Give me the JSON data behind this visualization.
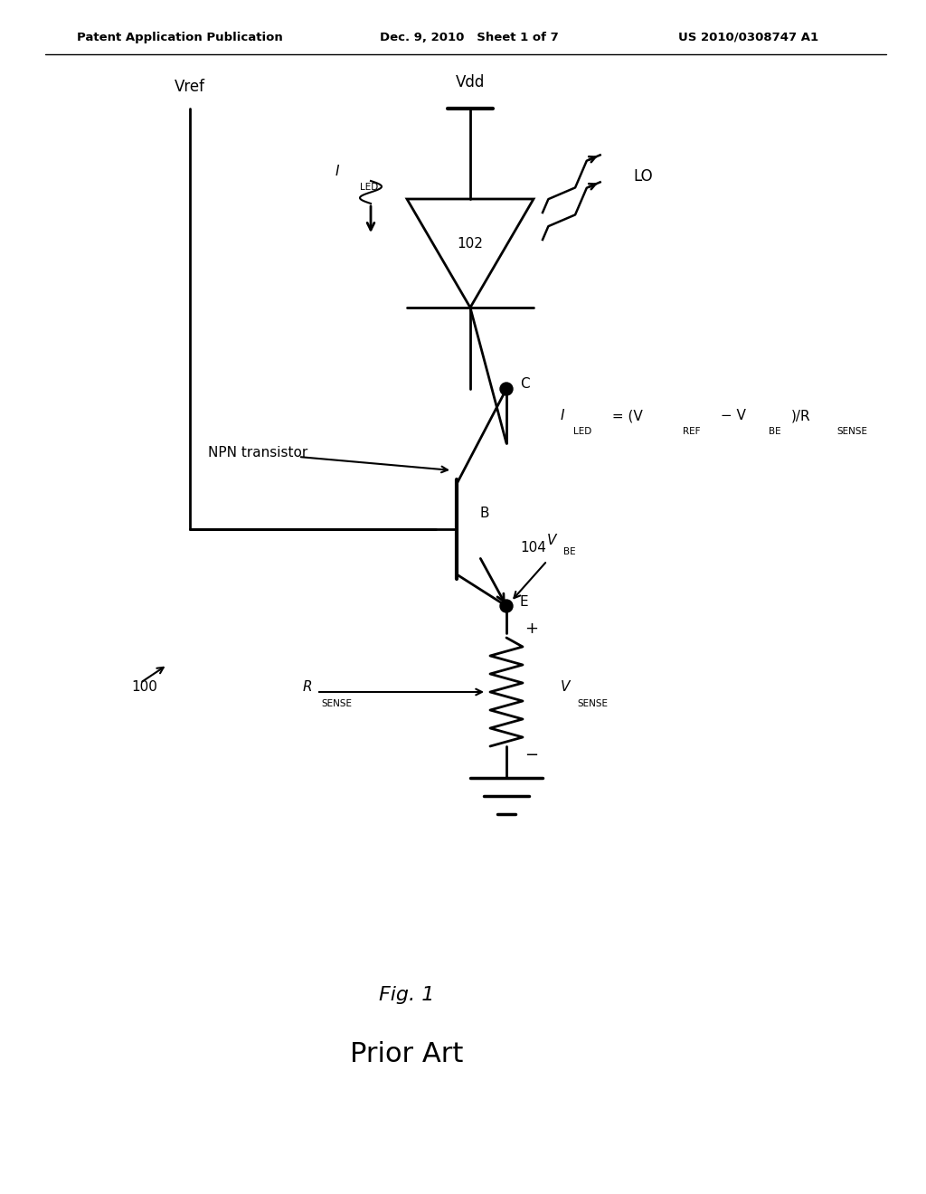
{
  "bg_color": "#ffffff",
  "line_color": "#000000",
  "header_left": "Patent Application Publication",
  "header_mid": "Dec. 9, 2010   Sheet 1 of 7",
  "header_right": "US 2010/0308747 A1",
  "fig_label": "Fig. 1",
  "prior_art": "Prior Art",
  "ref_100": "100",
  "ref_102": "102",
  "ref_104": "104",
  "label_vref": "Vref",
  "label_vdd": "Vdd",
  "label_iled": "I",
  "label_iled_sub": "LED",
  "label_lo": "LO",
  "label_npn": "NPN transistor",
  "label_C": "C",
  "label_B": "B",
  "label_E": "E",
  "label_vbe": "V",
  "label_vbe_sub": "BE",
  "label_rsense": "R",
  "label_rsense_sub": "SENSE",
  "label_vsense": "V",
  "label_vsense_sub": "SENSE",
  "eq_iled": "I",
  "eq_iled_sub": "LED",
  "eq_text": " = (V",
  "eq_ref_sub": "REF",
  "eq_mid": " − V",
  "eq_be_sub": "BE",
  "eq_end": ")/R",
  "eq_sense_sub": "SENSE",
  "plus_label": "+",
  "minus_label": "−"
}
